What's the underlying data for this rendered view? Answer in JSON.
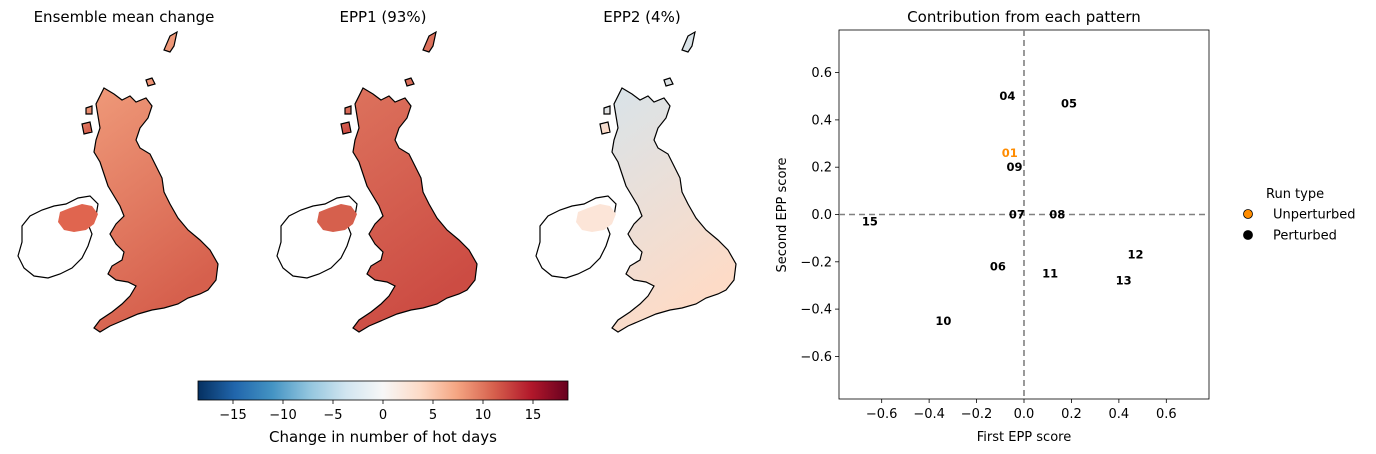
{
  "maps": [
    {
      "title": "Ensemble mean change",
      "tint": "#d6604d",
      "tint_light": "#f4a582",
      "ni_tint": "#e0654f"
    },
    {
      "title": "EPP1 (93%)",
      "tint": "#cc4c43",
      "tint_light": "#e07a62",
      "ni_tint": "#d6604d"
    },
    {
      "title": "EPP2 (4%)",
      "tint": "#fddbc7",
      "tint_light": "#d1e5f0",
      "ni_tint": "#fce5d8"
    }
  ],
  "colorbar": {
    "label": "Change in number of hot days",
    "min": -18.5,
    "max": 18.5,
    "ticks": [
      -15,
      -10,
      -5,
      0,
      5,
      10,
      15
    ],
    "tick_labels": [
      "−15",
      "−10",
      "−5",
      "0",
      "5",
      "10",
      "15"
    ],
    "colormap": [
      "#053061",
      "#2166ac",
      "#4393c3",
      "#92c5de",
      "#d1e5f0",
      "#f7f7f7",
      "#fddbc7",
      "#f4a582",
      "#d6604d",
      "#b2182b",
      "#67001f"
    ]
  },
  "chart_data": {
    "type": "scatter",
    "title": "Contribution from each pattern",
    "xlabel": "First EPP score",
    "ylabel": "Second EPP score",
    "xlim": [
      -0.78,
      0.78
    ],
    "ylim": [
      -0.78,
      0.78
    ],
    "xticks": [
      -0.6,
      -0.4,
      -0.2,
      0.0,
      0.2,
      0.4,
      0.6
    ],
    "xtick_labels": [
      "−0.6",
      "−0.4",
      "−0.2",
      "0.0",
      "0.2",
      "0.4",
      "0.6"
    ],
    "yticks": [
      -0.6,
      -0.4,
      -0.2,
      0.0,
      0.2,
      0.4,
      0.6
    ],
    "ytick_labels": [
      "−0.6",
      "−0.4",
      "−0.2",
      "0.0",
      "0.2",
      "0.4",
      "0.6"
    ],
    "reference_lines": {
      "x": 0.0,
      "y": 0.0
    },
    "points": [
      {
        "label": "01",
        "x": -0.06,
        "y": 0.26,
        "type": "Unperturbed"
      },
      {
        "label": "04",
        "x": -0.07,
        "y": 0.5,
        "type": "Perturbed"
      },
      {
        "label": "05",
        "x": 0.19,
        "y": 0.47,
        "type": "Perturbed"
      },
      {
        "label": "09",
        "x": -0.04,
        "y": 0.2,
        "type": "Perturbed"
      },
      {
        "label": "07",
        "x": -0.03,
        "y": 0.0,
        "type": "Perturbed"
      },
      {
        "label": "08",
        "x": 0.14,
        "y": 0.0,
        "type": "Perturbed"
      },
      {
        "label": "15",
        "x": -0.65,
        "y": -0.03,
        "type": "Perturbed"
      },
      {
        "label": "12",
        "x": 0.47,
        "y": -0.17,
        "type": "Perturbed"
      },
      {
        "label": "06",
        "x": -0.11,
        "y": -0.22,
        "type": "Perturbed"
      },
      {
        "label": "11",
        "x": 0.11,
        "y": -0.25,
        "type": "Perturbed"
      },
      {
        "label": "13",
        "x": 0.42,
        "y": -0.28,
        "type": "Perturbed"
      },
      {
        "label": "10",
        "x": -0.34,
        "y": -0.45,
        "type": "Perturbed"
      }
    ],
    "legend": {
      "title": "Run type",
      "placement": "right-outside",
      "entries": [
        {
          "name": "Unperturbed",
          "color": "#ff8c00"
        },
        {
          "name": "Perturbed",
          "color": "#000000"
        }
      ]
    },
    "colors": {
      "Unperturbed": "#ff8c00",
      "Perturbed": "#000000",
      "refline": "#808080"
    }
  }
}
